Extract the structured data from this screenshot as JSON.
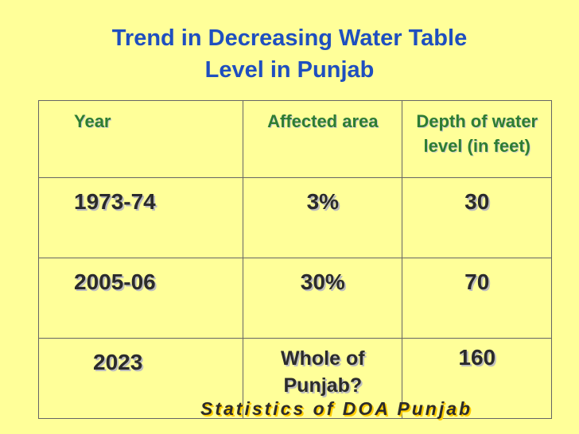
{
  "title": {
    "line1": "Trend in Decreasing Water Table",
    "line2": "Level in Punjab"
  },
  "table": {
    "headers": [
      "Year",
      "Affected area",
      "Depth of water level (in feet)"
    ],
    "header_depth_line1": "Depth of water",
    "header_depth_line2": "level (in feet)",
    "rows": [
      {
        "year": "1973-74",
        "area": "3%",
        "depth": "30"
      },
      {
        "year": "2005-06",
        "area": "30%",
        "depth": "70"
      },
      {
        "year": "2023",
        "area_line1": "Whole of",
        "area_line2": "Punjab?",
        "depth": "160"
      }
    ]
  },
  "footer": "Statistics of DOA Punjab",
  "colors": {
    "background": "#FFFF99",
    "title": "#1F4FBF",
    "header_text": "#2E7D32",
    "body_text": "#2b2b2b",
    "footer_shadow": "#FFCC00"
  }
}
